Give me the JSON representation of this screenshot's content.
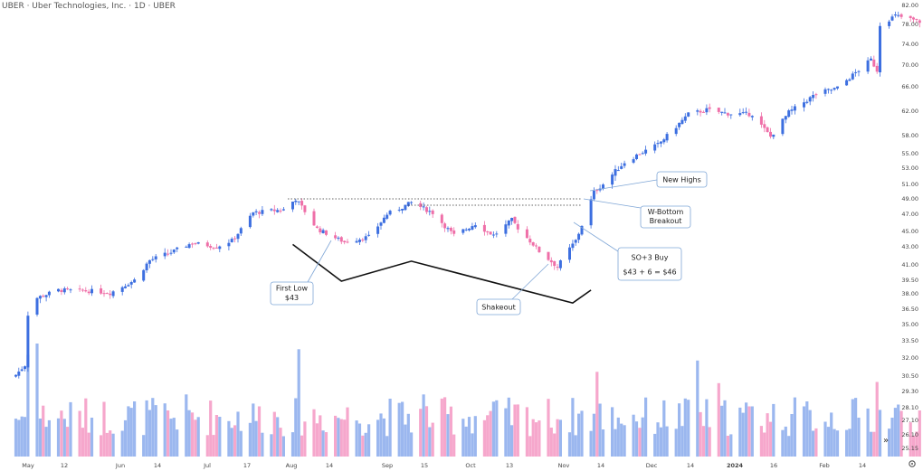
{
  "header": {
    "title": "UBER · Uber Technologies, Inc. · 1D · UBER"
  },
  "colors": {
    "up": "#3d6fe0",
    "down": "#ef6fa8",
    "volume_up": "#9bb7ef",
    "volume_down": "#f6a7cc",
    "annotation_border": "#7fa6d6",
    "pattern_line": "#111111"
  },
  "chart_data": {
    "type": "candlestick",
    "symbol": "UBER",
    "interval": "1D",
    "y_scale": "log",
    "ylim": [
      25.15,
      82.0
    ],
    "y_ticks": [
      "82.00",
      "78.00",
      "74.00",
      "70.00",
      "66.00",
      "62.00",
      "58.00",
      "55.00",
      "53.00",
      "51.00",
      "49.00",
      "47.00",
      "45.00",
      "43.00",
      "41.00",
      "39.50",
      "38.00",
      "36.50",
      "35.00",
      "33.50",
      "32.00",
      "30.50",
      "29.30",
      "28.10",
      "27.10",
      "26.10",
      "25.15"
    ],
    "x_ticks": [
      {
        "label": "May",
        "bold": false
      },
      {
        "label": "12",
        "bold": false
      },
      {
        "label": "Jun",
        "bold": false
      },
      {
        "label": "14",
        "bold": false
      },
      {
        "label": "Jul",
        "bold": false
      },
      {
        "label": "17",
        "bold": false
      },
      {
        "label": "Aug",
        "bold": false
      },
      {
        "label": "14",
        "bold": false
      },
      {
        "label": "Sep",
        "bold": false
      },
      {
        "label": "15",
        "bold": false
      },
      {
        "label": "Oct",
        "bold": false
      },
      {
        "label": "13",
        "bold": false
      },
      {
        "label": "Nov",
        "bold": false
      },
      {
        "label": "14",
        "bold": false
      },
      {
        "label": "Dec",
        "bold": false
      },
      {
        "label": "14",
        "bold": false
      },
      {
        "label": "2024",
        "bold": true
      },
      {
        "label": "16",
        "bold": false
      },
      {
        "label": "Feb",
        "bold": false
      },
      {
        "label": "14",
        "bold": false
      }
    ],
    "price_anchors": [
      {
        "date": "2023-05-01",
        "close": 30.6
      },
      {
        "date": "2023-05-04",
        "close": 31.4
      },
      {
        "date": "2023-05-05",
        "close": 36.0
      },
      {
        "date": "2023-05-08",
        "close": 37.6
      },
      {
        "date": "2023-05-15",
        "close": 38.4
      },
      {
        "date": "2023-05-26",
        "close": 38.3
      },
      {
        "date": "2023-06-01",
        "close": 38.1
      },
      {
        "date": "2023-06-09",
        "close": 39.5
      },
      {
        "date": "2023-06-14",
        "close": 41.5
      },
      {
        "date": "2023-06-22",
        "close": 42.5
      },
      {
        "date": "2023-06-28",
        "close": 43.5
      },
      {
        "date": "2023-07-06",
        "close": 43.0
      },
      {
        "date": "2023-07-11",
        "close": 43.8
      },
      {
        "date": "2023-07-18",
        "close": 47.2
      },
      {
        "date": "2023-07-28",
        "close": 47.6
      },
      {
        "date": "2023-08-01",
        "close": 49.0
      },
      {
        "date": "2023-08-08",
        "close": 45.3
      },
      {
        "date": "2023-08-17",
        "close": 43.6
      },
      {
        "date": "2023-08-25",
        "close": 44.3
      },
      {
        "date": "2023-08-31",
        "close": 47.0
      },
      {
        "date": "2023-09-08",
        "close": 48.5
      },
      {
        "date": "2023-09-15",
        "close": 47.2
      },
      {
        "date": "2023-09-22",
        "close": 44.5
      },
      {
        "date": "2023-09-29",
        "close": 45.9
      },
      {
        "date": "2023-10-05",
        "close": 44.5
      },
      {
        "date": "2023-10-11",
        "close": 46.3
      },
      {
        "date": "2023-10-20",
        "close": 42.5
      },
      {
        "date": "2023-10-26",
        "close": 40.8
      },
      {
        "date": "2023-11-01",
        "close": 43.8
      },
      {
        "date": "2023-11-07",
        "close": 49.9
      },
      {
        "date": "2023-11-17",
        "close": 53.8
      },
      {
        "date": "2023-11-28",
        "close": 56.5
      },
      {
        "date": "2023-12-08",
        "close": 61.5
      },
      {
        "date": "2023-12-14",
        "close": 62.2
      },
      {
        "date": "2023-12-21",
        "close": 61.6
      },
      {
        "date": "2023-12-29",
        "close": 61.5
      },
      {
        "date": "2024-01-04",
        "close": 57.8
      },
      {
        "date": "2024-01-10",
        "close": 61.8
      },
      {
        "date": "2024-01-19",
        "close": 64.8
      },
      {
        "date": "2024-01-26",
        "close": 65.8
      },
      {
        "date": "2024-02-06",
        "close": 71.0
      },
      {
        "date": "2024-02-08",
        "close": 69.0
      },
      {
        "date": "2024-02-09",
        "close": 78.0
      },
      {
        "date": "2024-02-14",
        "close": 79.8
      },
      {
        "date": "2024-02-22",
        "close": 78.6
      }
    ],
    "breakout_level": 49.0,
    "annotations": [
      {
        "id": "new-highs",
        "lines": [
          "New Highs"
        ]
      },
      {
        "id": "w-bottom",
        "lines": [
          "W-Bottom",
          "Breakout"
        ]
      },
      {
        "id": "so3-buy",
        "lines": [
          "SO+3 Buy",
          "$43 + 6 = $46"
        ]
      },
      {
        "id": "first-low",
        "lines": [
          "First Low",
          "$43"
        ]
      },
      {
        "id": "shakeout",
        "lines": [
          "Shakeout"
        ]
      }
    ],
    "w_pattern_points": [
      {
        "date": "2023-07-31",
        "price": 43.3
      },
      {
        "date": "2023-08-16",
        "price": 39.4
      },
      {
        "date": "2023-09-08",
        "price": 41.4
      },
      {
        "date": "2023-10-31",
        "price": 37.1
      },
      {
        "date": "2023-11-06",
        "price": 38.4
      }
    ]
  }
}
